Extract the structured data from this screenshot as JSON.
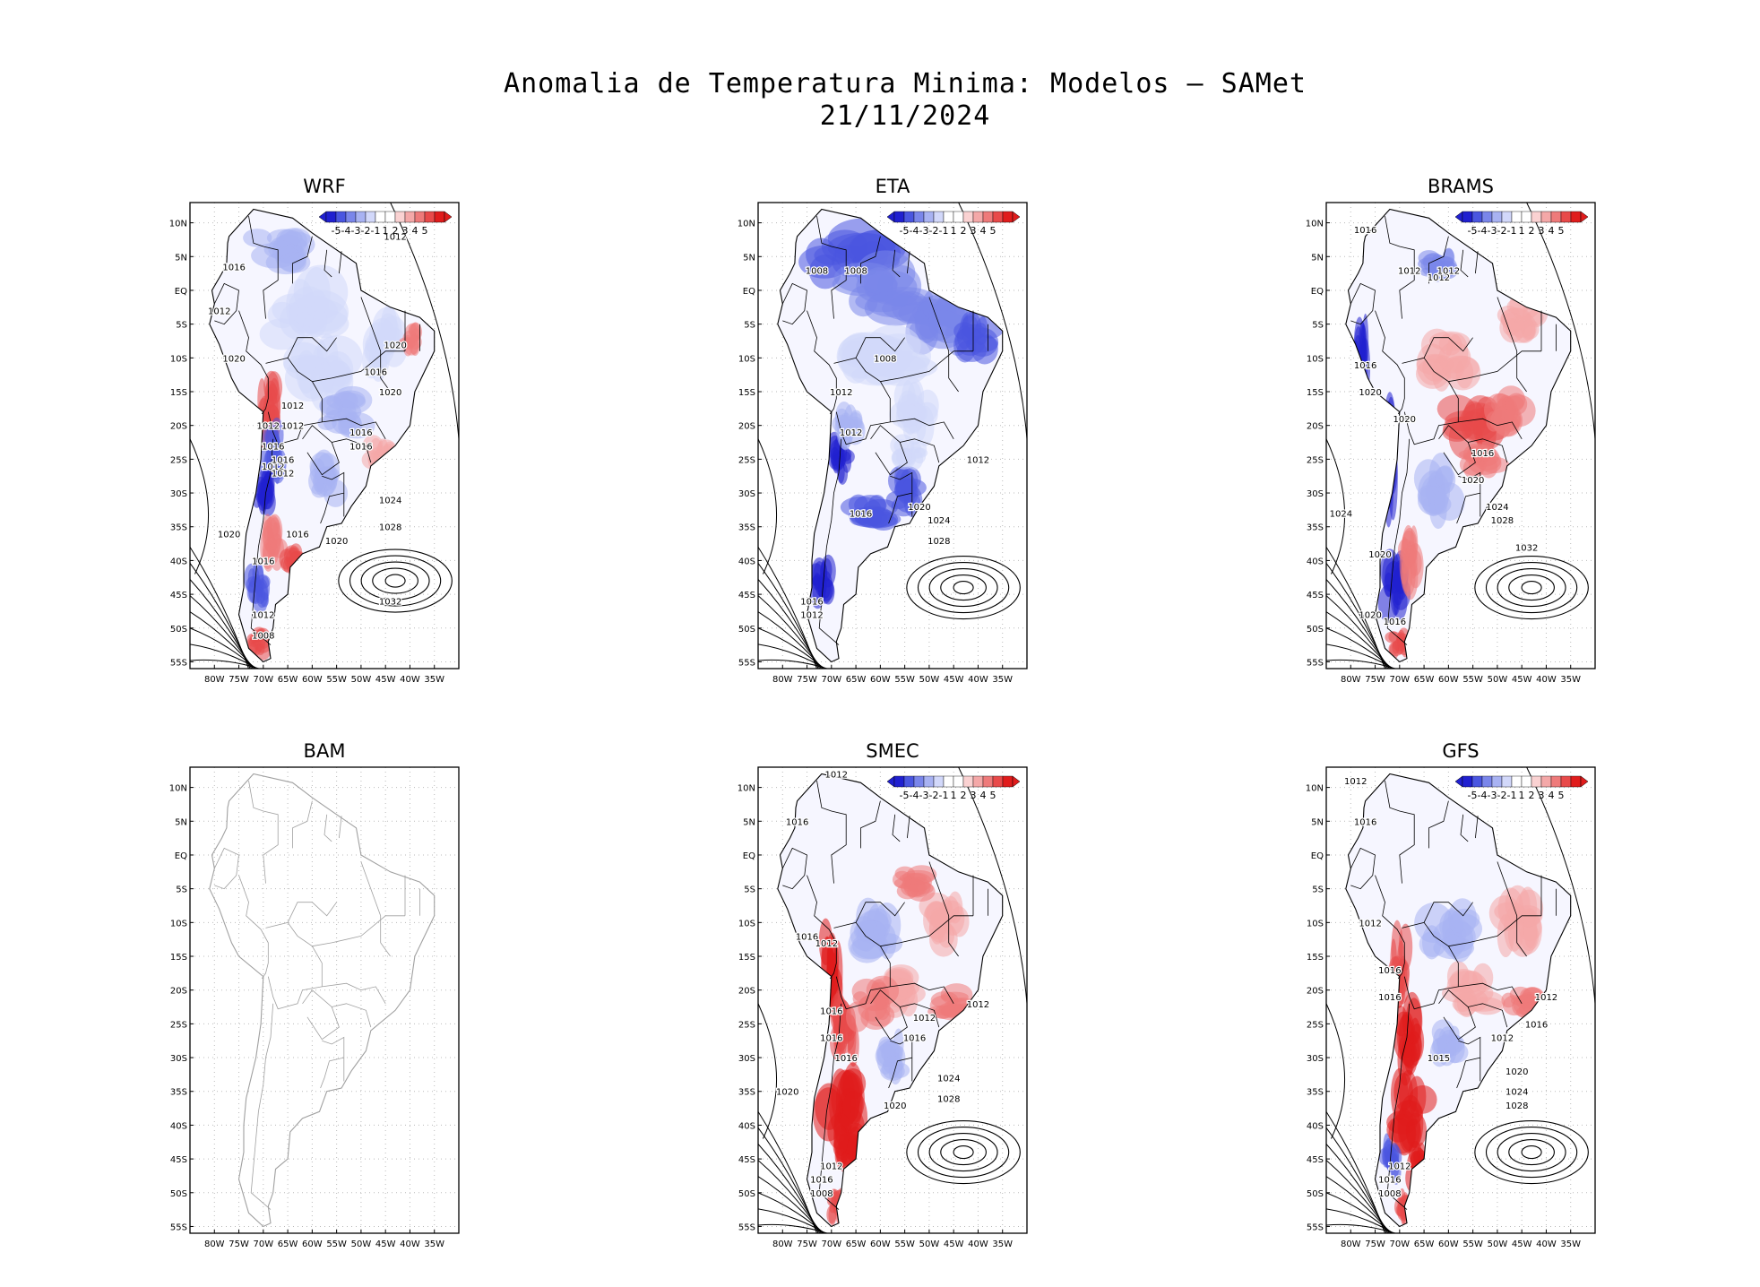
{
  "figure": {
    "title_line1": "Anomalia de Temperatura Minima: Modelos — SAMet",
    "title_line2": "21/11/2024"
  },
  "axes": {
    "lat_labels": [
      "10N",
      "5N",
      "EQ",
      "5S",
      "10S",
      "15S",
      "20S",
      "25S",
      "30S",
      "35S",
      "40S",
      "45S",
      "50S",
      "55S"
    ],
    "lon_labels": [
      "80W",
      "75W",
      "70W",
      "65W",
      "60W",
      "55W",
      "50W",
      "45W",
      "40W",
      "35W"
    ]
  },
  "colorbar": {
    "labels": [
      "-5",
      "-4",
      "-3",
      "-2",
      "-1",
      "1",
      "2",
      "3",
      "4",
      "5"
    ],
    "colors": [
      "#2020d0",
      "#4a56e0",
      "#7a86ea",
      "#a8b2f2",
      "#d2d8fa",
      "#ffffff",
      "#ffffff",
      "#fad2d2",
      "#f4a8a8",
      "#ee7a7a",
      "#e84a4a",
      "#e01c1c"
    ],
    "grid_color": "#bbbbbb",
    "land_outline": "#000000",
    "land_outline_empty": "#a0a0a0",
    "isobar_color": "#000000"
  },
  "panels": [
    {
      "id": "wrf",
      "title": "WRF",
      "has_data": true,
      "isobars": [
        "1012",
        "1016",
        "1012",
        "1020",
        "1012",
        "1012",
        "1012",
        "1016",
        "1012",
        "1020",
        "1016",
        "1020",
        "1016",
        "1016",
        "1012",
        "1016",
        "1020",
        "1020",
        "1016",
        "1016",
        "1024",
        "1028",
        "1032",
        "1012",
        "1008"
      ]
    },
    {
      "id": "eta",
      "title": "ETA",
      "has_data": true,
      "isobars": [
        "1008",
        "1008",
        "1008",
        "1012",
        "1012",
        "1012",
        "1016",
        "1020",
        "1024",
        "1028",
        "1016",
        "1012"
      ]
    },
    {
      "id": "brams",
      "title": "BRAMS",
      "has_data": true,
      "isobars": [
        "1016",
        "1012",
        "1012",
        "1012",
        "1016",
        "1020",
        "1020",
        "1016",
        "1020",
        "1024",
        "1024",
        "1028",
        "1032",
        "1020",
        "1020",
        "1016"
      ]
    },
    {
      "id": "bam",
      "title": "BAM",
      "has_data": false,
      "isobars": []
    },
    {
      "id": "smec",
      "title": "SMEC",
      "has_data": true,
      "isobars": [
        "1012",
        "1016",
        "1016",
        "1012",
        "1016",
        "1016",
        "1012",
        "1012",
        "1016",
        "1016",
        "1020",
        "1020",
        "1024",
        "1028",
        "1012",
        "1016",
        "1008"
      ]
    },
    {
      "id": "gfs",
      "title": "GFS",
      "has_data": true,
      "isobars": [
        "1012",
        "1016",
        "1012",
        "1016",
        "1016",
        "1012",
        "1012",
        "1016",
        "1015",
        "1020",
        "1024",
        "1028",
        "1012",
        "1016",
        "1008"
      ]
    }
  ]
}
